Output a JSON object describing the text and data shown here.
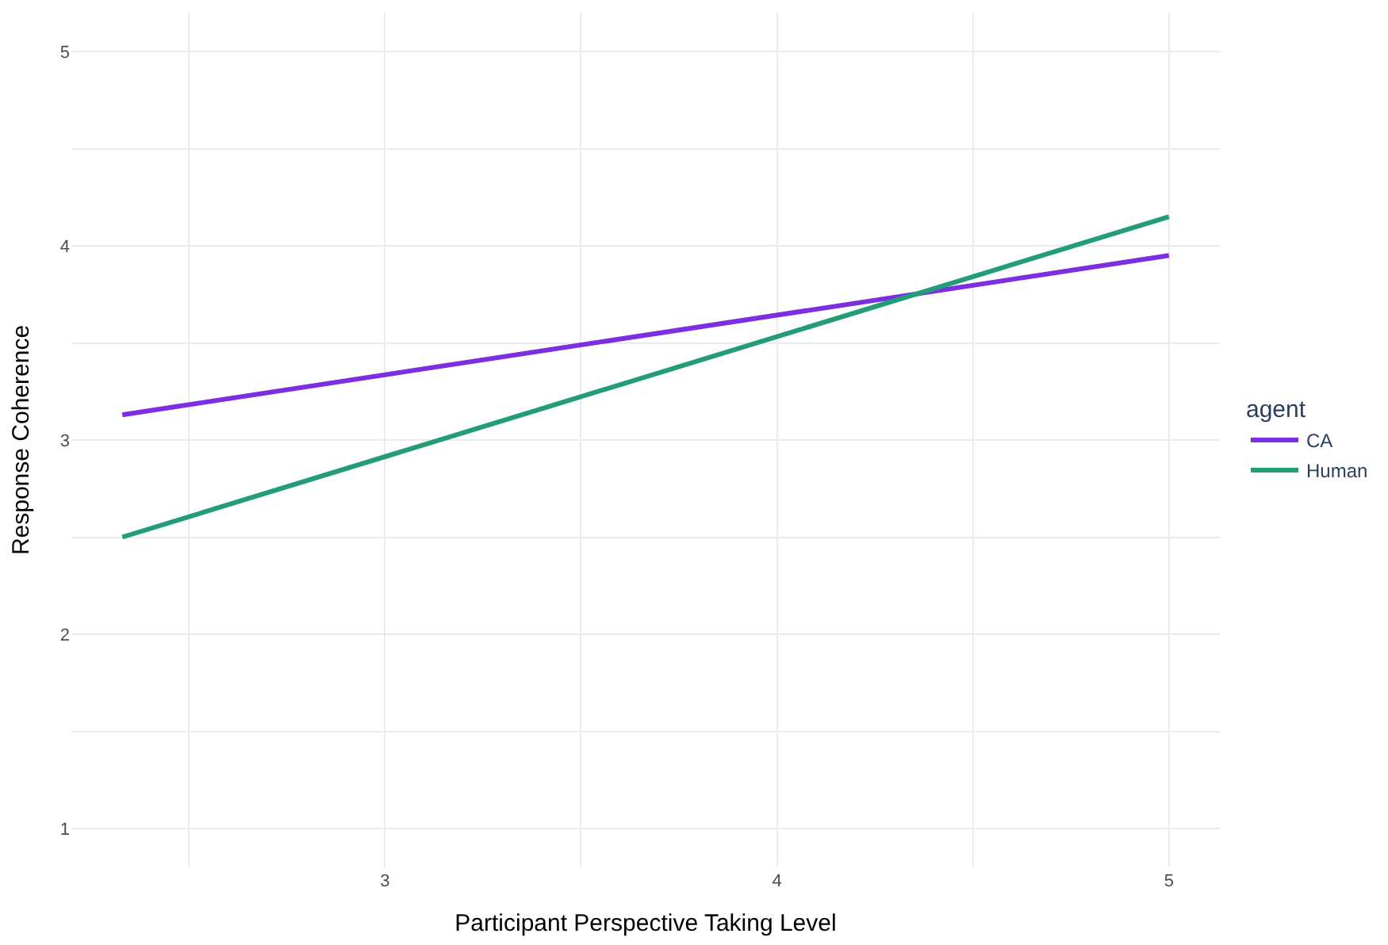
{
  "chart_data": {
    "type": "line",
    "xlabel": "Participant Perspective Taking Level",
    "ylabel": "Response Coherence",
    "legend_title": "agent",
    "legend": "right",
    "grid": true,
    "marker": "none",
    "line_style": "solid",
    "xlim": [
      2.2,
      5.13
    ],
    "ylim": [
      0.8,
      5.2
    ],
    "x": [
      2.33,
      5
    ],
    "xticks": [
      {
        "value": 2.5,
        "label": null
      },
      3,
      {
        "value": 3.5,
        "label": null
      },
      4,
      {
        "value": 4.5,
        "label": null
      },
      5
    ],
    "yticks": [
      1,
      {
        "value": 1.5,
        "label": null
      },
      2,
      {
        "value": 2.5,
        "label": null
      },
      3,
      {
        "value": 3.5,
        "label": null
      },
      4,
      {
        "value": 4.5,
        "label": null
      },
      5
    ],
    "series": [
      {
        "name": "CA",
        "color": "#7b2fe0",
        "values": [
          3.13,
          3.95
        ]
      },
      {
        "name": "Human",
        "color": "#239c79",
        "values": [
          2.5,
          4.15
        ]
      }
    ]
  }
}
